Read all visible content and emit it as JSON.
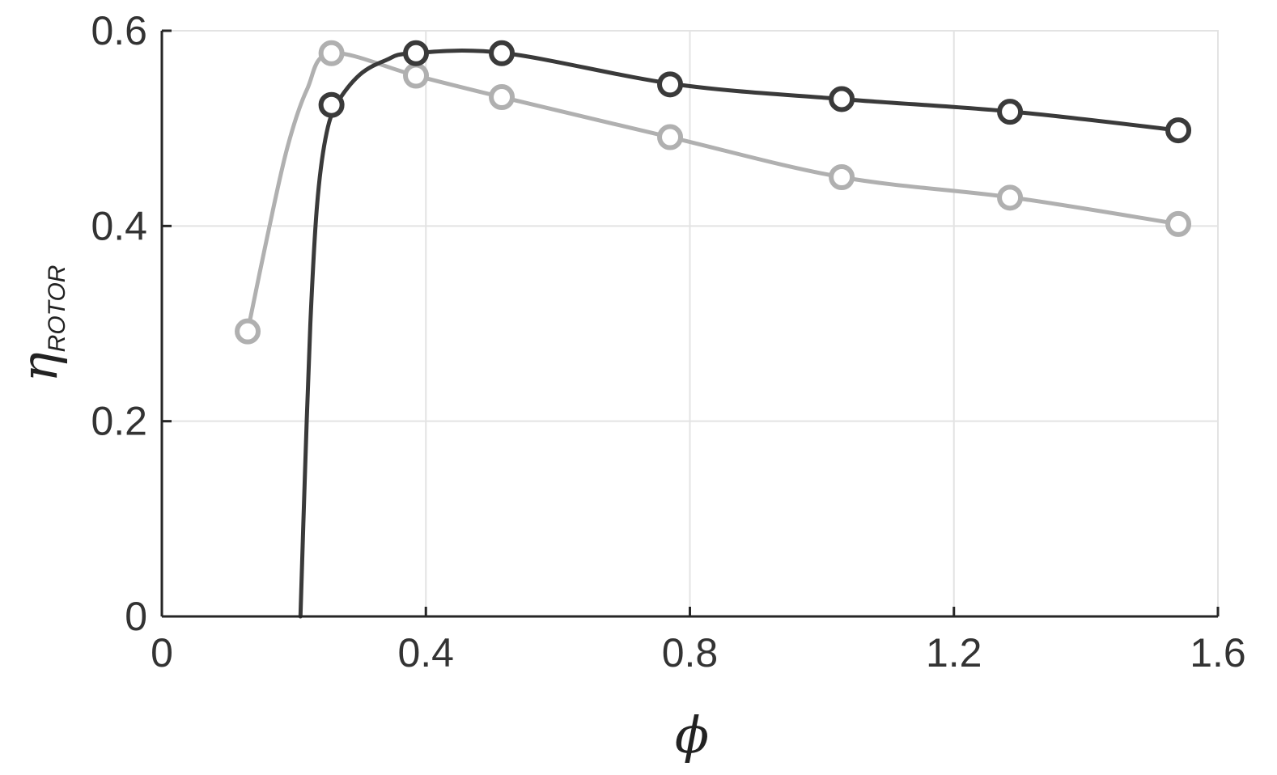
{
  "chart_data": {
    "type": "line",
    "title": "",
    "xlabel": "ϕ",
    "ylabel": {
      "symbol": "η",
      "subscript": "ROTOR"
    },
    "xlim": [
      0,
      1.6
    ],
    "ylim": [
      0,
      0.6
    ],
    "x_ticks": [
      "0",
      "0.4",
      "0.8",
      "1.2",
      "1.6"
    ],
    "y_ticks": [
      "0",
      "0.2",
      "0.4",
      "0.6"
    ],
    "x_tick_values": [
      0,
      0.4,
      0.8,
      1.2,
      1.6
    ],
    "y_tick_values": [
      0,
      0.2,
      0.4,
      0.6
    ],
    "grid": true,
    "legend": "none",
    "series": [
      {
        "color": "#3a3a3a",
        "curve": [
          [
            0.21,
            0.0
          ],
          [
            0.217,
            0.15
          ],
          [
            0.225,
            0.3
          ],
          [
            0.235,
            0.42
          ],
          [
            0.248,
            0.49
          ],
          [
            0.265,
            0.525
          ],
          [
            0.3,
            0.555
          ],
          [
            0.34,
            0.57
          ],
          [
            0.38,
            0.577
          ],
          [
            0.52,
            0.577
          ],
          [
            0.78,
            0.545
          ],
          [
            1.03,
            0.53
          ],
          [
            1.29,
            0.517
          ],
          [
            1.54,
            0.498
          ]
        ],
        "markers": [
          [
            0.257,
            0.524
          ],
          [
            0.385,
            0.577
          ],
          [
            0.515,
            0.577
          ],
          [
            0.77,
            0.545
          ],
          [
            1.03,
            0.53
          ],
          [
            1.285,
            0.517
          ],
          [
            1.54,
            0.498
          ]
        ]
      },
      {
        "color": "#b0b0b0",
        "curve": [
          [
            0.13,
            0.292
          ],
          [
            0.16,
            0.39
          ],
          [
            0.19,
            0.48
          ],
          [
            0.22,
            0.54
          ],
          [
            0.257,
            0.577
          ],
          [
            0.385,
            0.554
          ],
          [
            0.515,
            0.532
          ],
          [
            0.77,
            0.491
          ],
          [
            1.03,
            0.45
          ],
          [
            1.29,
            0.429
          ],
          [
            1.54,
            0.402
          ]
        ],
        "markers": [
          [
            0.13,
            0.292
          ],
          [
            0.257,
            0.577
          ],
          [
            0.385,
            0.554
          ],
          [
            0.515,
            0.532
          ],
          [
            0.77,
            0.491
          ],
          [
            1.03,
            0.45
          ],
          [
            1.285,
            0.429
          ],
          [
            1.54,
            0.402
          ]
        ]
      }
    ]
  }
}
